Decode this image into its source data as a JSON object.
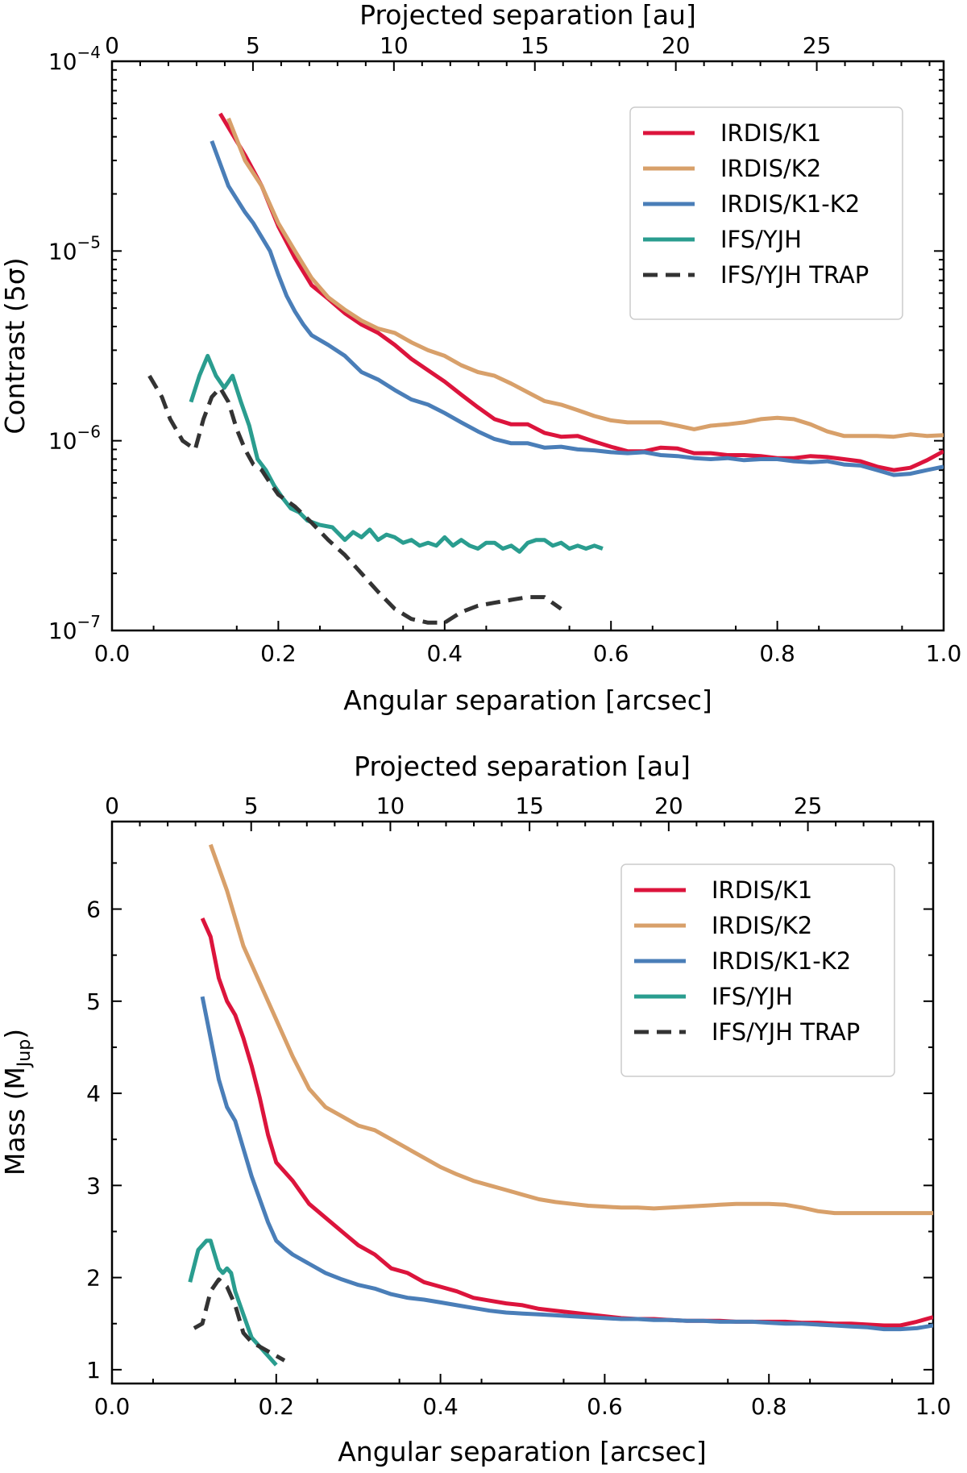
{
  "chart_data": [
    {
      "type": "line",
      "title": "",
      "xlabel": "Angular separation [arcsec]",
      "ylabel": "Contrast (5σ)",
      "secondary_xlabel": "Projected separation [au]",
      "xlim": [
        0.0,
        1.0
      ],
      "ylim": [
        1e-07,
        0.0001
      ],
      "yscale": "log",
      "au_per_arcsec": 29.5,
      "xticks": [
        "0.0",
        "0.2",
        "0.4",
        "0.6",
        "0.8",
        "1.0"
      ],
      "yticks": [
        {
          "base": "10",
          "exp": "−4",
          "value": 0.0001
        },
        {
          "base": "10",
          "exp": "−5",
          "value": 1e-05
        },
        {
          "base": "10",
          "exp": "−6",
          "value": 1e-06
        },
        {
          "base": "10",
          "exp": "−7",
          "value": 1e-07
        }
      ],
      "top_ticks": [
        "0",
        "5",
        "10",
        "15",
        "20",
        "25"
      ],
      "legend_position": "top-right",
      "series": [
        {
          "name": "IRDIS/K1",
          "color": "#dc143c",
          "dashed": false,
          "x": [
            0.13,
            0.16,
            0.18,
            0.2,
            0.22,
            0.24,
            0.26,
            0.28,
            0.3,
            0.32,
            0.34,
            0.36,
            0.38,
            0.4,
            0.42,
            0.44,
            0.46,
            0.48,
            0.5,
            0.52,
            0.54,
            0.56,
            0.58,
            0.6,
            0.62,
            0.64,
            0.66,
            0.68,
            0.7,
            0.72,
            0.74,
            0.76,
            0.78,
            0.8,
            0.82,
            0.84,
            0.86,
            0.88,
            0.9,
            0.92,
            0.94,
            0.96,
            0.98,
            1.0
          ],
          "y": [
            5.3e-05,
            3.2e-05,
            2.2e-05,
            1.35e-05,
            9.2e-06,
            6.6e-06,
            5.6e-06,
            4.7e-06,
            4.1e-06,
            3.7e-06,
            3.2e-06,
            2.7e-06,
            2.35e-06,
            2.05e-06,
            1.75e-06,
            1.5e-06,
            1.3e-06,
            1.22e-06,
            1.22e-06,
            1.1e-06,
            1.05e-06,
            1.06e-06,
            9.9e-07,
            9.3e-07,
            8.8e-07,
            8.8e-07,
            9.2e-07,
            9.1e-07,
            8.6e-07,
            8.6e-07,
            8.4e-07,
            8.4e-07,
            8.3e-07,
            8.1e-07,
            8.1e-07,
            8.3e-07,
            8.2e-07,
            8e-07,
            7.8e-07,
            7.3e-07,
            7e-07,
            7.2e-07,
            7.9e-07,
            8.8e-07
          ]
        },
        {
          "name": "IRDIS/K2",
          "color": "#d8a06a",
          "dashed": false,
          "x": [
            0.14,
            0.16,
            0.18,
            0.2,
            0.22,
            0.24,
            0.26,
            0.28,
            0.3,
            0.32,
            0.34,
            0.36,
            0.38,
            0.4,
            0.42,
            0.44,
            0.46,
            0.48,
            0.5,
            0.52,
            0.54,
            0.56,
            0.58,
            0.6,
            0.62,
            0.64,
            0.66,
            0.68,
            0.7,
            0.72,
            0.74,
            0.76,
            0.78,
            0.8,
            0.82,
            0.84,
            0.86,
            0.88,
            0.9,
            0.92,
            0.94,
            0.96,
            0.98,
            1.0
          ],
          "y": [
            5e-05,
            3e-05,
            2.2e-05,
            1.4e-05,
            1e-05,
            7.2e-06,
            5.7e-06,
            4.9e-06,
            4.3e-06,
            3.9e-06,
            3.7e-06,
            3.3e-06,
            3e-06,
            2.8e-06,
            2.5e-06,
            2.3e-06,
            2.2e-06,
            2e-06,
            1.8e-06,
            1.62e-06,
            1.55e-06,
            1.45e-06,
            1.35e-06,
            1.28e-06,
            1.25e-06,
            1.25e-06,
            1.25e-06,
            1.2e-06,
            1.15e-06,
            1.2e-06,
            1.22e-06,
            1.25e-06,
            1.3e-06,
            1.32e-06,
            1.3e-06,
            1.22e-06,
            1.12e-06,
            1.06e-06,
            1.06e-06,
            1.06e-06,
            1.05e-06,
            1.08e-06,
            1.06e-06,
            1.07e-06
          ]
        },
        {
          "name": "IRDIS/K1-K2",
          "color": "#4a7eb8",
          "dashed": false,
          "x": [
            0.12,
            0.14,
            0.16,
            0.17,
            0.19,
            0.2,
            0.21,
            0.22,
            0.23,
            0.24,
            0.26,
            0.28,
            0.3,
            0.32,
            0.34,
            0.36,
            0.38,
            0.4,
            0.42,
            0.44,
            0.46,
            0.48,
            0.5,
            0.52,
            0.54,
            0.56,
            0.58,
            0.6,
            0.62,
            0.64,
            0.66,
            0.68,
            0.7,
            0.72,
            0.74,
            0.76,
            0.78,
            0.8,
            0.82,
            0.84,
            0.86,
            0.88,
            0.9,
            0.92,
            0.94,
            0.96,
            0.98,
            1.0
          ],
          "y": [
            3.8e-05,
            2.2e-05,
            1.6e-05,
            1.4e-05,
            1e-05,
            7.5e-06,
            5.8e-06,
            4.8e-06,
            4.1e-06,
            3.6e-06,
            3.2e-06,
            2.8e-06,
            2.3e-06,
            2.1e-06,
            1.85e-06,
            1.65e-06,
            1.55e-06,
            1.4e-06,
            1.25e-06,
            1.12e-06,
            1.02e-06,
            9.7e-07,
            9.7e-07,
            9.2e-07,
            9.3e-07,
            9e-07,
            8.9e-07,
            8.7e-07,
            8.6e-07,
            8.7e-07,
            8.4e-07,
            8.3e-07,
            8.1e-07,
            8e-07,
            8.1e-07,
            7.9e-07,
            8e-07,
            8e-07,
            7.8e-07,
            7.7e-07,
            7.8e-07,
            7.5e-07,
            7.4e-07,
            7e-07,
            6.6e-07,
            6.7e-07,
            7e-07,
            7.3e-07
          ]
        },
        {
          "name": "IFS/YJH",
          "color": "#2a9d8f",
          "dashed": false,
          "x": [
            0.095,
            0.105,
            0.115,
            0.125,
            0.135,
            0.145,
            0.155,
            0.165,
            0.175,
            0.185,
            0.195,
            0.205,
            0.215,
            0.225,
            0.235,
            0.25,
            0.265,
            0.28,
            0.29,
            0.3,
            0.31,
            0.32,
            0.33,
            0.34,
            0.35,
            0.36,
            0.37,
            0.38,
            0.39,
            0.4,
            0.41,
            0.42,
            0.43,
            0.44,
            0.45,
            0.46,
            0.47,
            0.48,
            0.49,
            0.5,
            0.51,
            0.52,
            0.53,
            0.54,
            0.55,
            0.56,
            0.57,
            0.58,
            0.59
          ],
          "y": [
            1.6e-06,
            2.2e-06,
            2.8e-06,
            2.2e-06,
            1.9e-06,
            2.2e-06,
            1.6e-06,
            1.2e-06,
            8e-07,
            7e-07,
            5.8e-07,
            5e-07,
            4.4e-07,
            4.2e-07,
            3.8e-07,
            3.6e-07,
            3.5e-07,
            3e-07,
            3.3e-07,
            3.1e-07,
            3.4e-07,
            3e-07,
            3.2e-07,
            3.1e-07,
            2.9e-07,
            3e-07,
            2.8e-07,
            2.9e-07,
            2.8e-07,
            3.1e-07,
            2.8e-07,
            3e-07,
            2.8e-07,
            2.7e-07,
            2.9e-07,
            2.9e-07,
            2.7e-07,
            2.8e-07,
            2.6e-07,
            2.9e-07,
            3e-07,
            3e-07,
            2.8e-07,
            2.9e-07,
            2.7e-07,
            2.8e-07,
            2.7e-07,
            2.8e-07,
            2.7e-07
          ]
        },
        {
          "name": "IFS/YJH TRAP",
          "color": "#333333",
          "dashed": true,
          "x": [
            0.045,
            0.06,
            0.07,
            0.085,
            0.1,
            0.11,
            0.12,
            0.13,
            0.14,
            0.15,
            0.16,
            0.17,
            0.18,
            0.19,
            0.2,
            0.22,
            0.24,
            0.26,
            0.28,
            0.3,
            0.32,
            0.34,
            0.36,
            0.38,
            0.4,
            0.42,
            0.44,
            0.46,
            0.48,
            0.5,
            0.52,
            0.54
          ],
          "y": [
            2.2e-06,
            1.7e-06,
            1.3e-06,
            1e-06,
            9e-07,
            1.3e-06,
            1.7e-06,
            1.9e-06,
            1.6e-06,
            1.15e-06,
            9e-07,
            7.5e-07,
            7e-07,
            6e-07,
            5.2e-07,
            4.5e-07,
            3.7e-07,
            3e-07,
            2.5e-07,
            2e-07,
            1.6e-07,
            1.3e-07,
            1.15e-07,
            1.1e-07,
            1.1e-07,
            1.25e-07,
            1.35e-07,
            1.4e-07,
            1.45e-07,
            1.5e-07,
            1.5e-07,
            1.3e-07
          ]
        }
      ]
    },
    {
      "type": "line",
      "title": "",
      "xlabel": "Angular separation [arcsec]",
      "ylabel": "Mass (M",
      "ylabel_sub": "Jup",
      "ylabel_close": ")",
      "secondary_xlabel": "Projected separation [au]",
      "xlim": [
        0.0,
        1.0
      ],
      "ylim": [
        0.85,
        6.95
      ],
      "yscale": "linear",
      "au_per_arcsec": 29.5,
      "xticks": [
        "0.0",
        "0.2",
        "0.4",
        "0.6",
        "0.8",
        "1.0"
      ],
      "yticks": [
        "1",
        "2",
        "3",
        "4",
        "5",
        "6"
      ],
      "top_ticks": [
        "0",
        "5",
        "10",
        "15",
        "20",
        "25"
      ],
      "legend_position": "top-right",
      "series": [
        {
          "name": "IRDIS/K1",
          "color": "#dc143c",
          "dashed": false,
          "x": [
            0.11,
            0.12,
            0.13,
            0.14,
            0.15,
            0.16,
            0.17,
            0.18,
            0.19,
            0.2,
            0.22,
            0.24,
            0.26,
            0.28,
            0.3,
            0.32,
            0.34,
            0.36,
            0.38,
            0.4,
            0.42,
            0.44,
            0.46,
            0.48,
            0.5,
            0.52,
            0.54,
            0.56,
            0.58,
            0.6,
            0.62,
            0.64,
            0.66,
            0.68,
            0.7,
            0.72,
            0.74,
            0.76,
            0.78,
            0.8,
            0.82,
            0.84,
            0.86,
            0.88,
            0.9,
            0.92,
            0.94,
            0.96,
            0.98,
            1.0
          ],
          "y": [
            5.9,
            5.7,
            5.25,
            5.0,
            4.85,
            4.6,
            4.3,
            3.95,
            3.55,
            3.25,
            3.05,
            2.8,
            2.65,
            2.5,
            2.35,
            2.25,
            2.1,
            2.05,
            1.95,
            1.9,
            1.85,
            1.78,
            1.75,
            1.72,
            1.7,
            1.66,
            1.64,
            1.62,
            1.6,
            1.58,
            1.56,
            1.55,
            1.55,
            1.54,
            1.53,
            1.53,
            1.53,
            1.52,
            1.52,
            1.52,
            1.52,
            1.51,
            1.51,
            1.5,
            1.5,
            1.49,
            1.48,
            1.48,
            1.52,
            1.57
          ]
        },
        {
          "name": "IRDIS/K2",
          "color": "#d8a06a",
          "dashed": false,
          "x": [
            0.12,
            0.14,
            0.16,
            0.18,
            0.2,
            0.22,
            0.24,
            0.26,
            0.28,
            0.3,
            0.32,
            0.34,
            0.36,
            0.38,
            0.4,
            0.42,
            0.44,
            0.46,
            0.48,
            0.5,
            0.52,
            0.54,
            0.56,
            0.58,
            0.6,
            0.62,
            0.64,
            0.66,
            0.68,
            0.7,
            0.72,
            0.74,
            0.76,
            0.78,
            0.8,
            0.82,
            0.84,
            0.86,
            0.88,
            0.9,
            0.92,
            0.94,
            0.96,
            0.98,
            1.0
          ],
          "y": [
            6.7,
            6.2,
            5.6,
            5.2,
            4.8,
            4.4,
            4.05,
            3.85,
            3.75,
            3.65,
            3.6,
            3.5,
            3.4,
            3.3,
            3.2,
            3.12,
            3.05,
            3.0,
            2.95,
            2.9,
            2.85,
            2.82,
            2.8,
            2.78,
            2.77,
            2.76,
            2.76,
            2.75,
            2.76,
            2.77,
            2.78,
            2.79,
            2.8,
            2.8,
            2.8,
            2.79,
            2.76,
            2.72,
            2.7,
            2.7,
            2.7,
            2.7,
            2.7,
            2.7,
            2.7
          ]
        },
        {
          "name": "IRDIS/K1-K2",
          "color": "#4a7eb8",
          "dashed": false,
          "x": [
            0.11,
            0.12,
            0.13,
            0.14,
            0.15,
            0.16,
            0.17,
            0.18,
            0.19,
            0.2,
            0.21,
            0.22,
            0.24,
            0.26,
            0.28,
            0.3,
            0.32,
            0.34,
            0.36,
            0.38,
            0.4,
            0.42,
            0.44,
            0.46,
            0.48,
            0.5,
            0.52,
            0.54,
            0.56,
            0.58,
            0.6,
            0.62,
            0.64,
            0.66,
            0.68,
            0.7,
            0.72,
            0.74,
            0.76,
            0.78,
            0.8,
            0.82,
            0.84,
            0.86,
            0.88,
            0.9,
            0.92,
            0.94,
            0.96,
            0.98,
            1.0
          ],
          "y": [
            5.05,
            4.6,
            4.15,
            3.85,
            3.7,
            3.4,
            3.1,
            2.85,
            2.6,
            2.4,
            2.32,
            2.25,
            2.15,
            2.05,
            1.98,
            1.92,
            1.88,
            1.82,
            1.78,
            1.76,
            1.73,
            1.7,
            1.67,
            1.64,
            1.62,
            1.61,
            1.6,
            1.59,
            1.58,
            1.57,
            1.56,
            1.55,
            1.55,
            1.54,
            1.54,
            1.53,
            1.53,
            1.52,
            1.52,
            1.52,
            1.51,
            1.5,
            1.5,
            1.49,
            1.48,
            1.47,
            1.46,
            1.44,
            1.44,
            1.45,
            1.48
          ]
        },
        {
          "name": "IFS/YJH",
          "color": "#2a9d8f",
          "dashed": false,
          "x": [
            0.095,
            0.105,
            0.115,
            0.12,
            0.125,
            0.13,
            0.135,
            0.14,
            0.145,
            0.15,
            0.16,
            0.17,
            0.18,
            0.19,
            0.2
          ],
          "y": [
            1.95,
            2.3,
            2.4,
            2.4,
            2.25,
            2.1,
            2.05,
            2.1,
            2.05,
            1.85,
            1.6,
            1.35,
            1.25,
            1.15,
            1.05
          ]
        },
        {
          "name": "IFS/YJH TRAP",
          "color": "#333333",
          "dashed": true,
          "x": [
            0.1,
            0.11,
            0.12,
            0.13,
            0.14,
            0.15,
            0.16,
            0.17,
            0.18,
            0.19,
            0.2,
            0.21
          ],
          "y": [
            1.45,
            1.5,
            1.85,
            1.98,
            1.9,
            1.7,
            1.4,
            1.3,
            1.25,
            1.2,
            1.15,
            1.1
          ]
        }
      ]
    }
  ]
}
